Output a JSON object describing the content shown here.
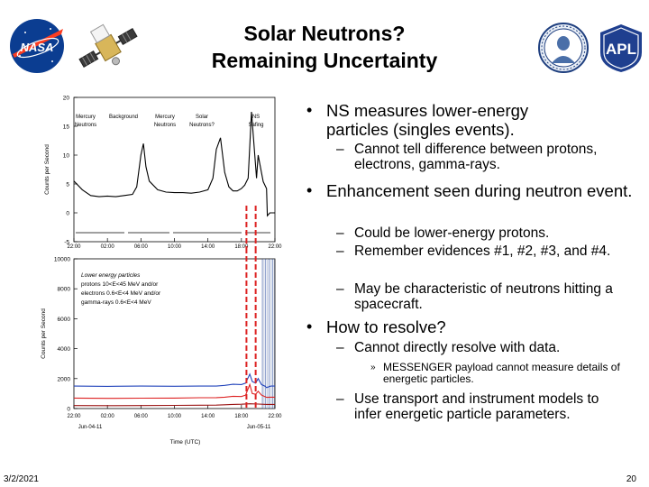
{
  "title_line1": "Solar Neutrons?",
  "title_line2": "Remaining Uncertainty",
  "logos": {
    "nasa": "NASA",
    "apl": "APL",
    "spacecraft_icon": "messenger-spacecraft-icon",
    "seal_icon": "johns-hopkins-seal-icon"
  },
  "bullets": [
    {
      "text": "NS measures lower-energy particles (singles events).",
      "sub": [
        {
          "text": "Cannot tell difference between protons, electrons, gamma-rays."
        }
      ]
    },
    {
      "text": "Enhancement seen during neutron event.",
      "sub": [
        {
          "text": "Could be lower-energy protons."
        },
        {
          "text": "Remember evidences #1, #2, #3, and #4."
        },
        {
          "text": "May be characteristic of neutrons hitting a spacecraft."
        }
      ]
    },
    {
      "text": "How to resolve?",
      "sub": [
        {
          "text": "Cannot directly resolve with data.",
          "sub": [
            {
              "text": "MESSENGER payload cannot measure details of energetic particles."
            }
          ]
        },
        {
          "text": "Use transport and instrument models to infer energetic particle parameters."
        }
      ]
    }
  ],
  "footer": {
    "date": "3/2/2021",
    "page": "20"
  },
  "colors": {
    "red": "#dd2222",
    "blue": "#2244bb",
    "dark_red": "#991111"
  },
  "chart_data": [
    {
      "type": "line",
      "ylabel": "Counts per Second",
      "ylim": [
        -5,
        20
      ],
      "yticks": [
        "20",
        "15",
        "10",
        "5",
        "0",
        "-5"
      ],
      "xticks": [
        "22:00",
        "02:00",
        "06:00",
        "10:00",
        "14:00",
        "18:00",
        "22:00"
      ],
      "annotations": [
        {
          "line1": "Mercury",
          "line2": "Neutrons"
        },
        {
          "line1": "Background",
          "line2": ""
        },
        {
          "line1": "Mercury",
          "line2": "Neutrons"
        },
        {
          "line1": "Solar",
          "line2": "Neutrons?"
        },
        {
          "line1": "NS",
          "line2": "Safing"
        }
      ],
      "series": [
        {
          "name": "counts",
          "x": [
            22,
            23,
            24,
            25,
            26,
            27,
            28,
            29,
            29.5,
            30,
            30.3,
            30.6,
            31,
            32,
            33,
            34,
            35,
            36,
            37,
            38,
            38.6,
            39,
            39.5,
            40,
            40.5,
            41,
            41.5,
            42,
            42.4,
            42.8,
            43.2,
            43.8,
            44,
            44.6,
            45,
            45.1,
            45.4,
            46
          ],
          "y": [
            5.5,
            4,
            3,
            2.8,
            2.9,
            2.8,
            3.0,
            3.2,
            4.5,
            10,
            12,
            8,
            5.5,
            4,
            3.6,
            3.5,
            3.5,
            3.4,
            3.6,
            4,
            6,
            11,
            13,
            7,
            4.5,
            3.8,
            3.8,
            4.2,
            4.8,
            6,
            17.5,
            6,
            10,
            5.4,
            4.2,
            -0.5,
            0,
            0
          ]
        }
      ]
    },
    {
      "type": "line",
      "ylabel": "Counts per Second",
      "ylim": [
        0,
        10000
      ],
      "yticks": [
        "10000",
        "8000",
        "6000",
        "4000",
        "2000",
        "0"
      ],
      "xticks": [
        "22:00",
        "02:00",
        "06:00",
        "10:00",
        "14:00",
        "18:00",
        "22:00"
      ],
      "date_start": "Jun-04-11",
      "date_end": "Jun-05-11",
      "xlabel": "Time (UTC)",
      "legend_line1": "Lower energy particles",
      "legend_line2": "protons 10<E<45 MeV and/or",
      "legend_line3": "electrons 0.6<E<4 MeV and/or",
      "legend_line4": "gamma-rays 0.6<E<4 MeV",
      "series": [
        {
          "name": "blue",
          "x": [
            22,
            26,
            30,
            34,
            37,
            39,
            40,
            41,
            42,
            42.5,
            43,
            43.3,
            43.7,
            44,
            44.4,
            44.8,
            45,
            45.5,
            46
          ],
          "y": [
            1500,
            1480,
            1500,
            1490,
            1500,
            1500,
            1550,
            1620,
            1600,
            1700,
            2300,
            1800,
            1700,
            2000,
            1600,
            1500,
            1400,
            1500,
            1500
          ]
        },
        {
          "name": "red",
          "x": [
            22,
            26,
            30,
            34,
            37,
            39,
            40,
            41,
            42,
            42.5,
            43,
            43.3,
            43.7,
            44,
            44.4,
            44.8,
            45,
            45.5,
            46
          ],
          "y": [
            700,
            680,
            690,
            700,
            720,
            730,
            760,
            820,
            800,
            900,
            1600,
            1000,
            950,
            1150,
            900,
            800,
            750,
            760,
            760
          ]
        },
        {
          "name": "dark_red",
          "x": [
            22,
            26,
            30,
            34,
            37,
            39,
            40,
            41,
            42,
            43,
            44,
            45,
            46
          ],
          "y": [
            200,
            190,
            200,
            210,
            220,
            230,
            250,
            280,
            290,
            320,
            300,
            280,
            280
          ]
        }
      ]
    }
  ]
}
